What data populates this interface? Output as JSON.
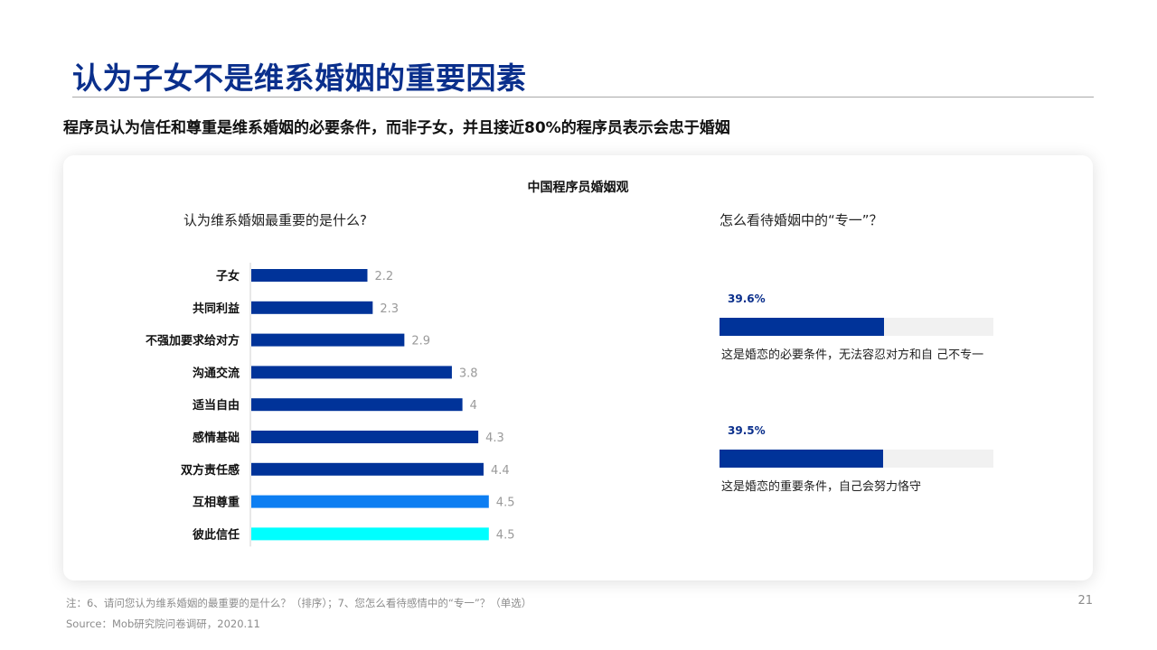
{
  "header": {
    "title": "认为子女不是维系婚姻的重要因素",
    "subtitle": "程序员认为信任和尊重是维系婚姻的必要条件，而非子女，并且接近80%的程序员表示会忠于婚姻"
  },
  "card": {
    "title": "中国程序员婚姻观",
    "left_heading": "认为维系婚姻最重要的是什么?",
    "right_heading": "怎么看待婚姻中的“专一”？"
  },
  "chart_data": [
    {
      "type": "bar",
      "orientation": "horizontal",
      "title": "认为维系婚姻最重要的是什么?",
      "categories": [
        "子女",
        "共同利益",
        "不强加要求给对方",
        "沟通交流",
        "适当自由",
        "感情基础",
        "双方责任感",
        "互相尊重",
        "彼此信任"
      ],
      "values": [
        2.2,
        2.3,
        2.9,
        3.8,
        4,
        4.3,
        4.4,
        4.5,
        4.5
      ],
      "value_labels": [
        "2.2",
        "2.3",
        "2.9",
        "3.8",
        "4",
        "4.3",
        "4.4",
        "4.5",
        "4.5"
      ],
      "colors": [
        "#003399",
        "#003399",
        "#003399",
        "#003399",
        "#003399",
        "#003399",
        "#003399",
        "#0d7ef2",
        "#00ffff"
      ],
      "xlim": [
        0,
        5
      ],
      "grid": false,
      "legend": "none"
    },
    {
      "type": "bar",
      "orientation": "horizontal",
      "title": "怎么看待婚姻中的“专一”？",
      "categories": [
        "这是婚恋的必要条件，无法容忍对方和自 己不专一",
        "这是婚恋的重要条件，自己会努力恪守"
      ],
      "values": [
        39.6,
        39.5
      ],
      "value_labels": [
        "39.6%",
        "39.5%"
      ],
      "unit": "%",
      "xlim": [
        0,
        100
      ],
      "colors": [
        "#003399",
        "#003399"
      ]
    }
  ],
  "footer": {
    "note": "注：6、请问您认为维系婚姻的最重要的是什么？（排序）；7、您怎么看待感情中的“专一”？（单选）",
    "source": "Source：Mob研究院问卷调研，2020.11",
    "page_number": "21"
  }
}
